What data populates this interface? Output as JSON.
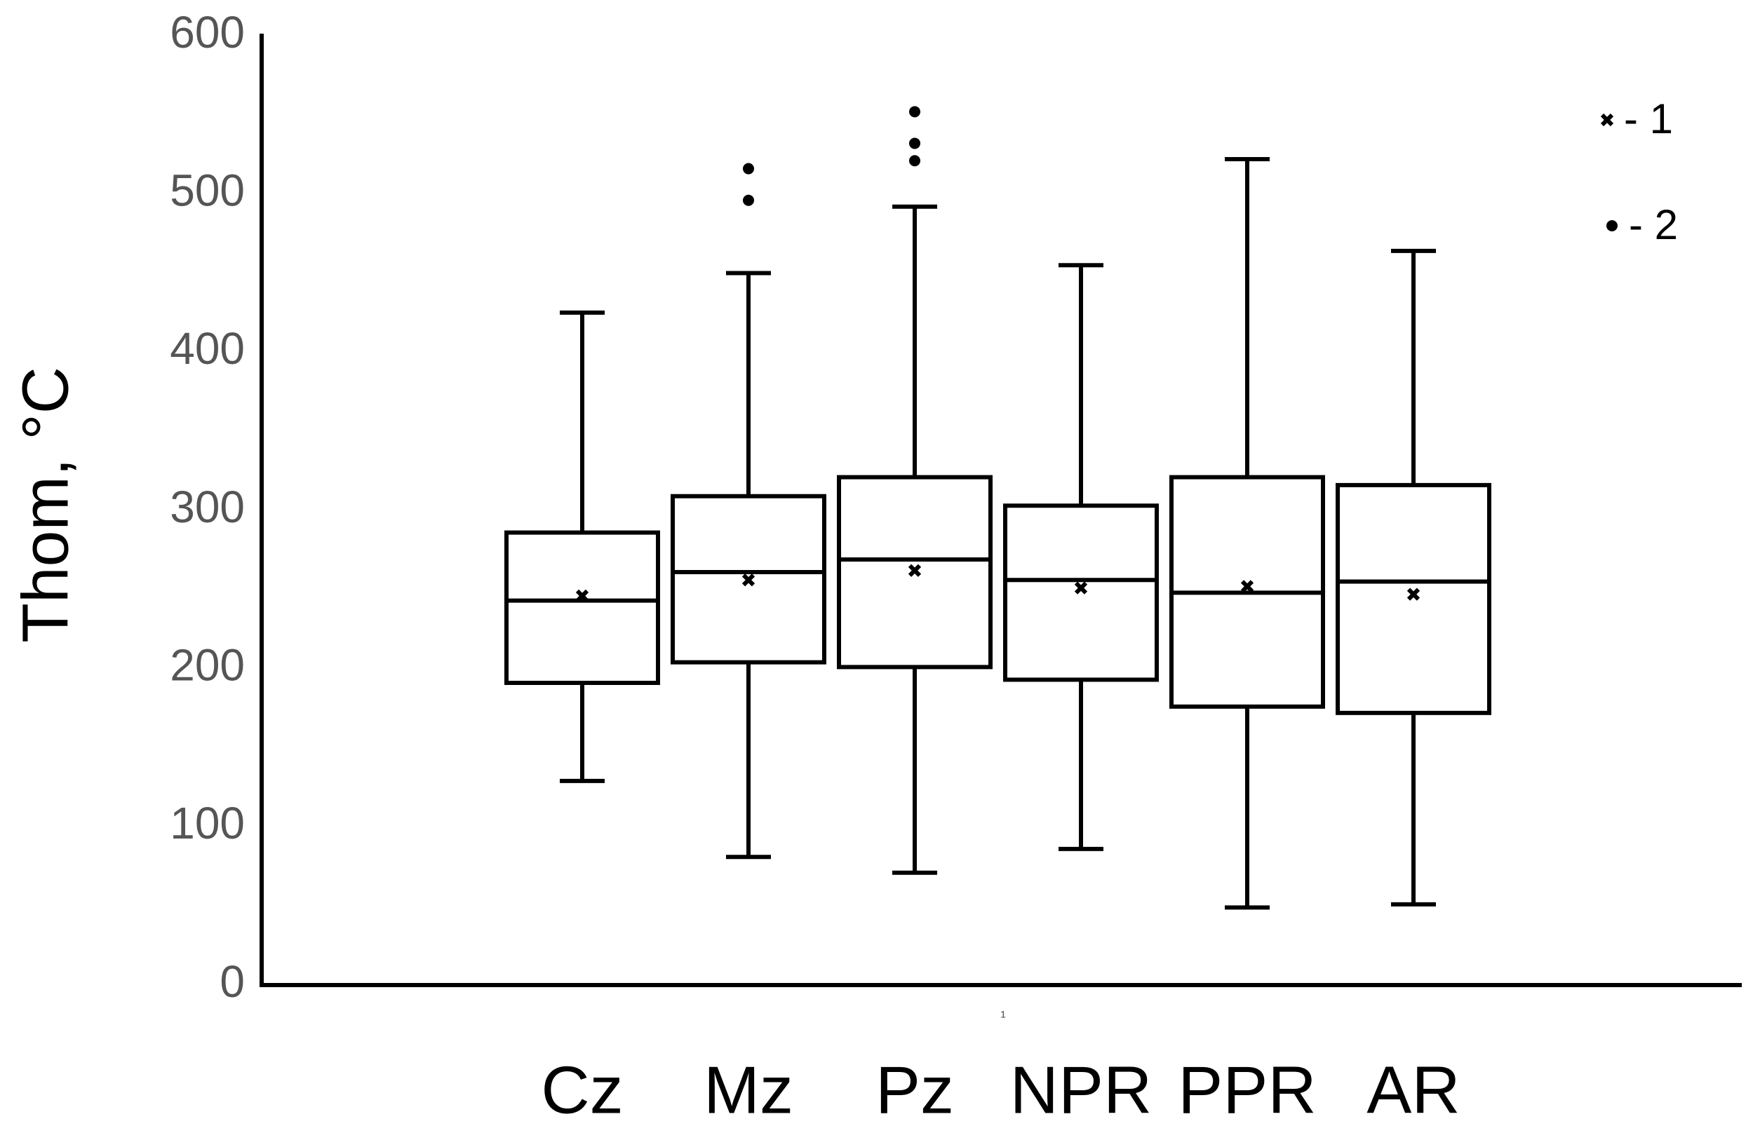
{
  "chart_data": {
    "type": "box",
    "y_label": "Thom, °C",
    "x_note": "1",
    "categories": [
      "Cz",
      "Mz",
      "Pz",
      "NPR",
      "PPR",
      "AR"
    ],
    "min": [
      129,
      81,
      71,
      86,
      49,
      51
    ],
    "q1": [
      191,
      204,
      201,
      193,
      176,
      172
    ],
    "median": [
      243,
      261,
      269,
      256,
      248,
      255
    ],
    "q3": [
      286,
      309,
      321,
      303,
      321,
      316
    ],
    "max": [
      425,
      450,
      492,
      455,
      522,
      464
    ],
    "mean": [
      246,
      256,
      262,
      251,
      252,
      247
    ],
    "outliers": [
      [],
      [
        516,
        496
      ],
      [
        552,
        532,
        521
      ],
      [],
      [],
      []
    ],
    "color": "#000000",
    "ylim": [
      0,
      600
    ],
    "yticks": [
      0,
      100,
      200,
      300,
      400,
      500,
      600
    ],
    "grid": false,
    "legend_position": "upper right",
    "legend": [
      {
        "marker": "cross",
        "label": "- 1"
      },
      {
        "marker": "dot",
        "label": "- 2"
      }
    ]
  }
}
